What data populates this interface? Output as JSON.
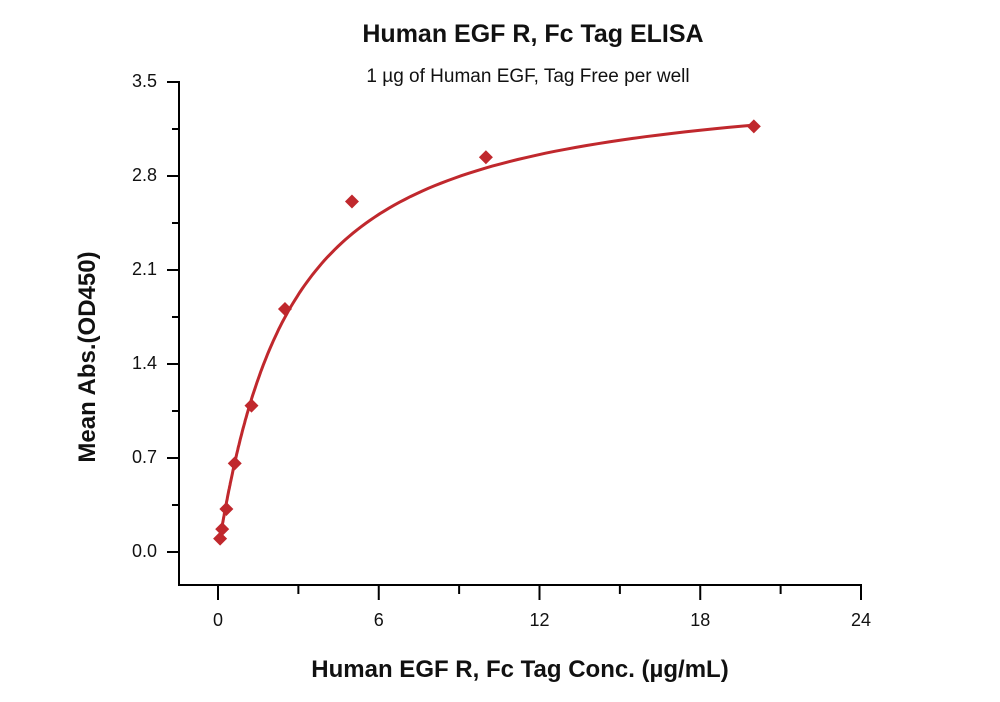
{
  "chart_data": {
    "type": "scatter",
    "title": "Human EGF R, Fc Tag ELISA",
    "subtitle": "1 µg of Human EGF, Tag Free per well",
    "xlabel": "Human EGF R, Fc Tag Conc. (µg/mL)",
    "ylabel": "Mean Abs.(OD450)",
    "xlim": [
      -1.5,
      24
    ],
    "ylim": [
      -0.24,
      3.5
    ],
    "x_ticks": [
      "0",
      "6",
      "12",
      "18",
      "24"
    ],
    "y_ticks": [
      "0.0",
      "0.7",
      "1.4",
      "2.1",
      "2.8",
      "3.5"
    ],
    "grid": false,
    "legend": null,
    "series": [
      {
        "name": "Human EGF R, Fc Tag",
        "color": "#c0282d",
        "marker": "diamond",
        "fit": "4PL curve",
        "x": [
          0.078,
          0.156,
          0.3125,
          0.625,
          1.25,
          2.5,
          5,
          10,
          20
        ],
        "y": [
          0.1,
          0.17,
          0.32,
          0.66,
          1.09,
          1.81,
          2.61,
          2.94,
          3.17
        ]
      }
    ]
  }
}
